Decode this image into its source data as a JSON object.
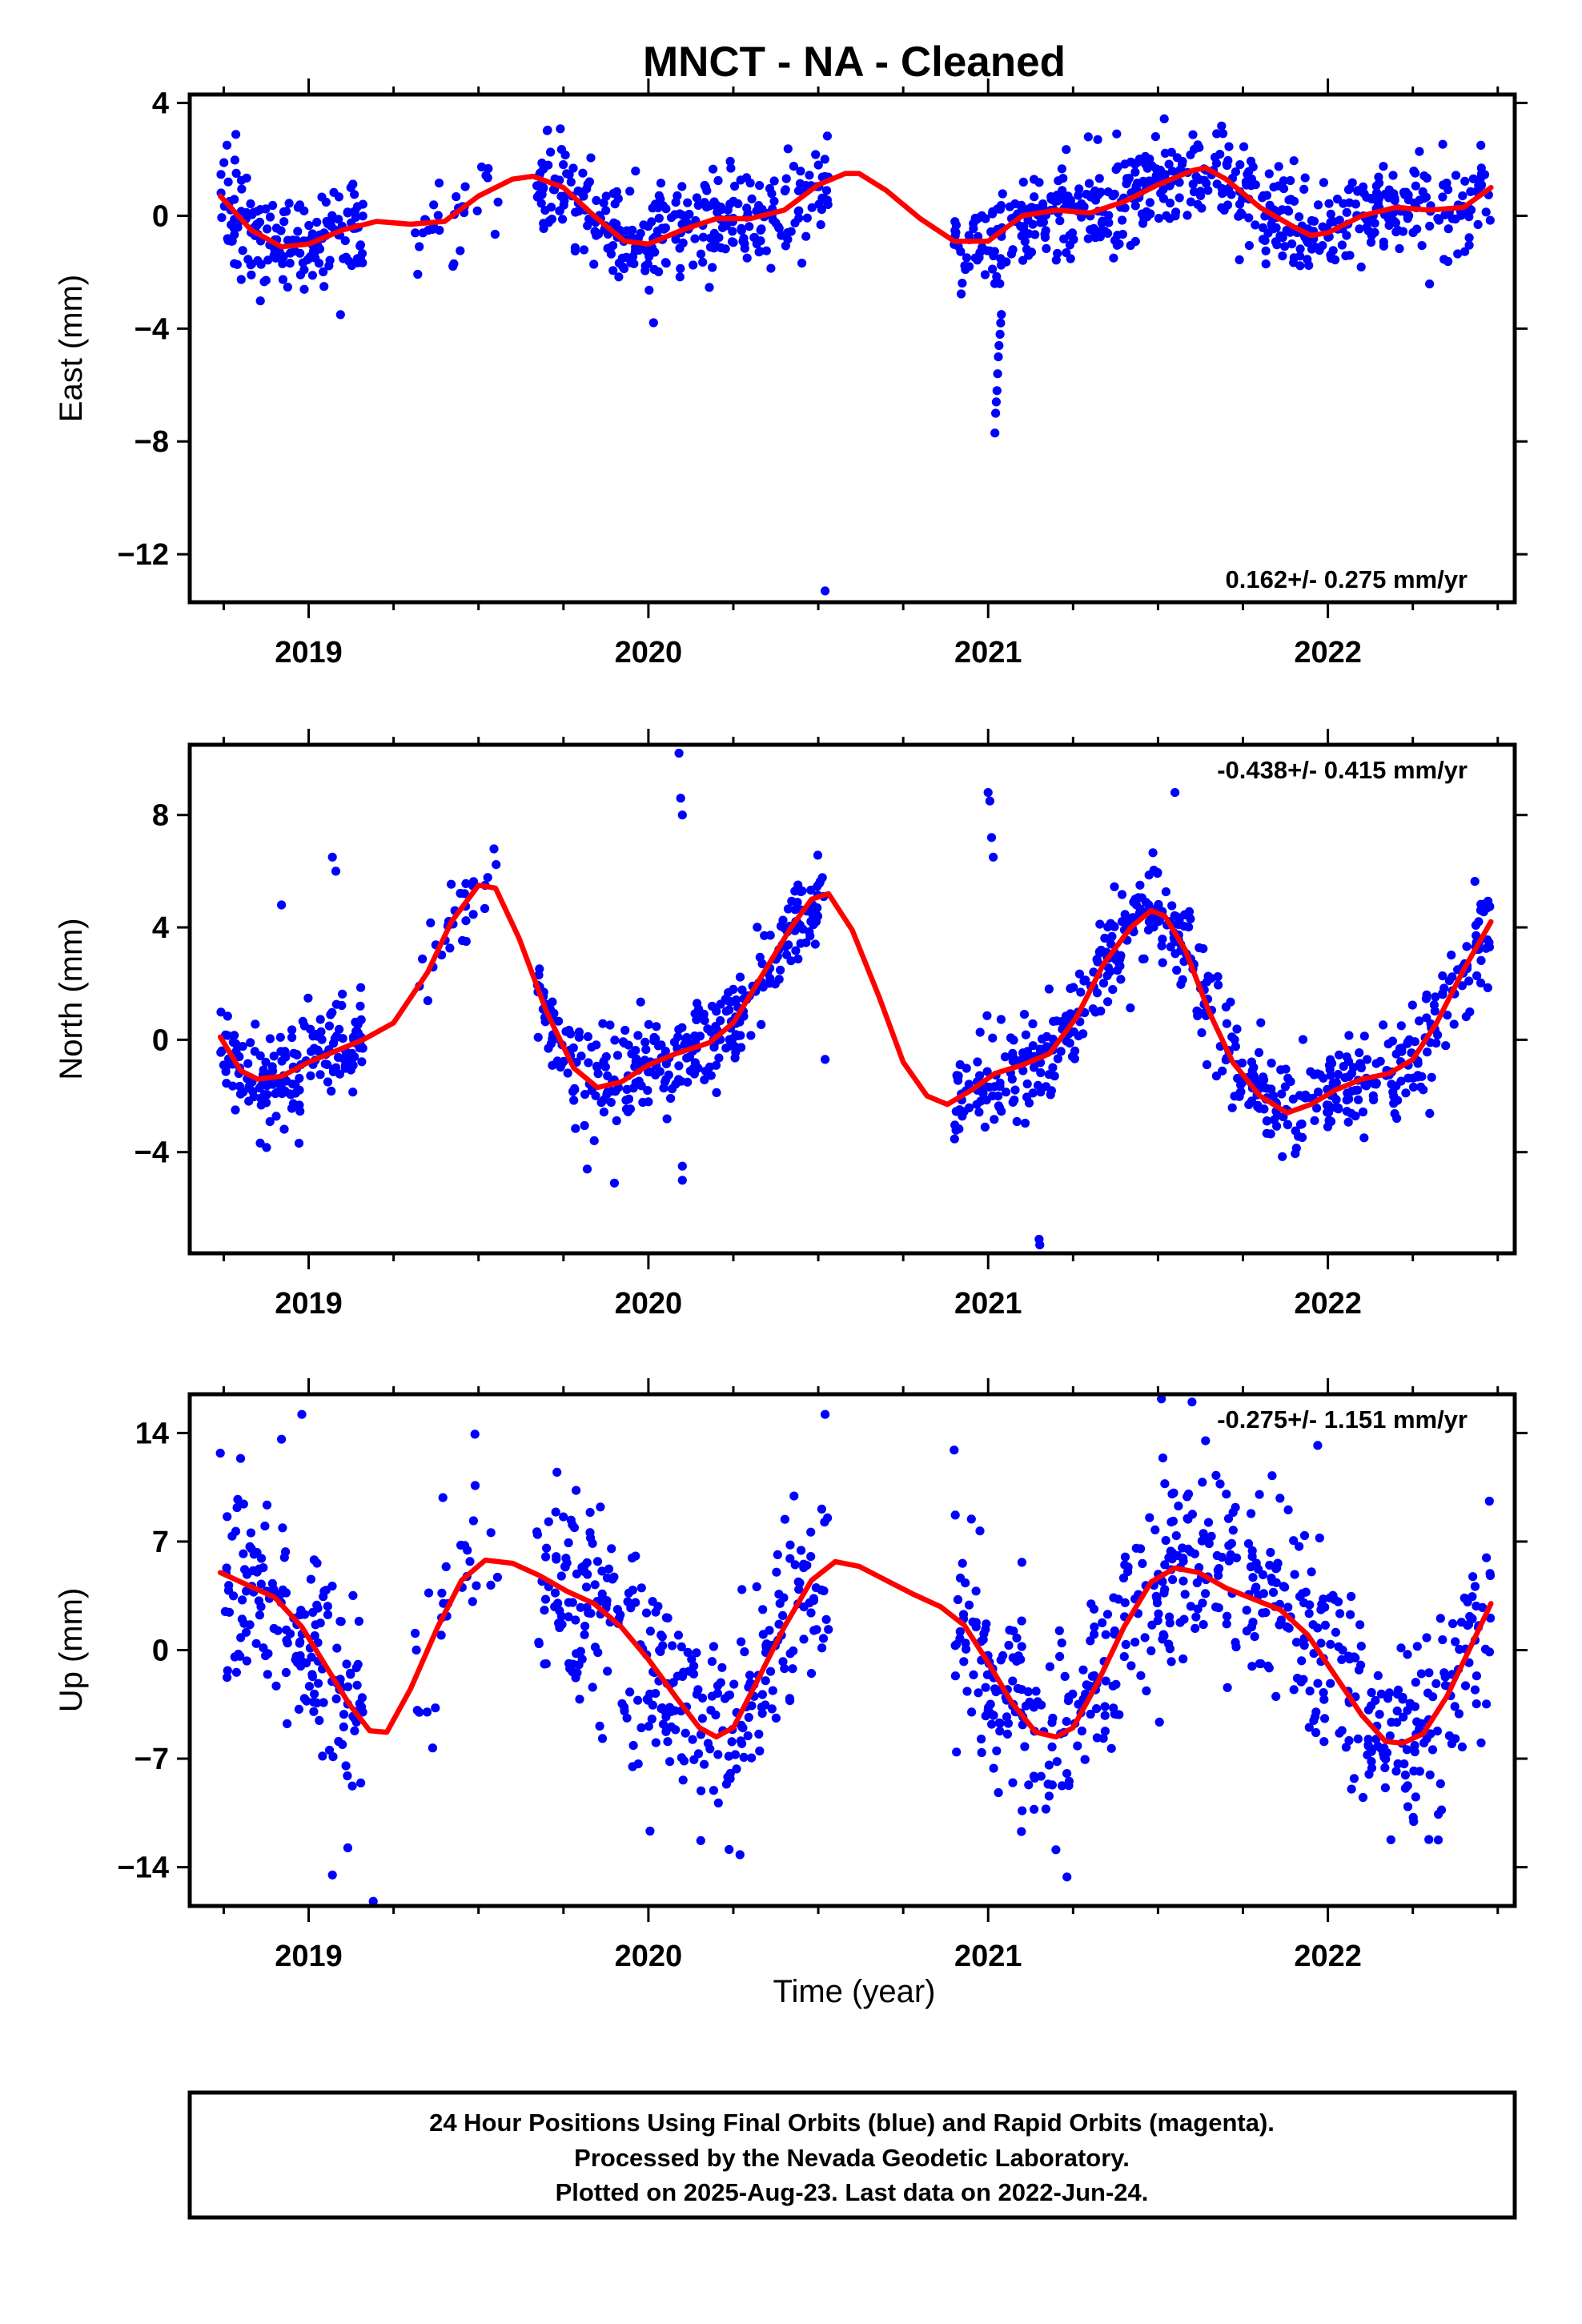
{
  "title": "MNCT  - NA - Cleaned",
  "xlabel": "Time (year)",
  "colors": {
    "points": "#0000ff",
    "model": "#ff0000",
    "frame": "#000000"
  },
  "footer": {
    "line1": "24 Hour Positions Using Final Orbits (blue) and Rapid Orbits (magenta).",
    "line2": "Processed by the Nevada Geodetic Laboratory.",
    "line3": "Plotted on 2025-Aug-23. Last data on 2022-Jun-24."
  },
  "chart_data": [
    {
      "type": "scatter",
      "ylabel": "East (mm)",
      "rate_label": "0.162+/- 0.275 mm/yr",
      "rate_position": "bottom-right",
      "xlim": [
        2018.65,
        2022.55
      ],
      "ylim": [
        -13.7,
        4.3
      ],
      "yticks": [
        4,
        0,
        -4,
        -8,
        -12
      ],
      "ytick_labels": [
        "4",
        "0",
        "−4",
        "−8",
        "−12"
      ],
      "xticks": [
        2019,
        2020,
        2021,
        2022
      ],
      "xtick_labels": [
        "2019",
        "2020",
        "2021",
        "2022"
      ],
      "series": [
        {
          "role": "observations",
          "segments": [
            {
              "start": 2018.74,
              "end": 2019.16,
              "n": 170
            },
            {
              "start": 2019.31,
              "end": 2019.56,
              "n": 30
            },
            {
              "start": 2019.67,
              "end": 2020.53,
              "n": 310
            },
            {
              "start": 2020.9,
              "end": 2022.48,
              "n": 560
            }
          ],
          "noise": 0.85,
          "outliers": [
            {
              "x": 2021.02,
              "y": -7.7
            },
            {
              "x": 2021.022,
              "y": -7.0
            },
            {
              "x": 2021.024,
              "y": -6.6
            },
            {
              "x": 2021.026,
              "y": -6.2
            },
            {
              "x": 2021.028,
              "y": -5.6
            },
            {
              "x": 2021.03,
              "y": -5.0
            },
            {
              "x": 2021.032,
              "y": -4.6
            },
            {
              "x": 2021.035,
              "y": -4.2
            },
            {
              "x": 2021.037,
              "y": -3.8
            },
            {
              "x": 2021.039,
              "y": -3.5
            },
            {
              "x": 2020.52,
              "y": -13.3
            }
          ]
        },
        {
          "role": "model",
          "x": [
            2018.74,
            2018.83,
            2018.92,
            2019.0,
            2019.1,
            2019.2,
            2019.3,
            2019.4,
            2019.5,
            2019.6,
            2019.66,
            2019.75,
            2019.84,
            2019.93,
            2020.0,
            2020.1,
            2020.2,
            2020.3,
            2020.4,
            2020.5,
            2020.58,
            2020.62,
            2020.7,
            2020.8,
            2020.9,
            2021.0,
            2021.1,
            2021.2,
            2021.3,
            2021.4,
            2021.5,
            2021.6,
            2021.64,
            2021.7,
            2021.8,
            2021.9,
            2021.95,
            2022.0,
            2022.1,
            2022.2,
            2022.3,
            2022.4,
            2022.48
          ],
          "y": [
            0.7,
            -0.5,
            -1.1,
            -1.0,
            -0.5,
            -0.2,
            -0.3,
            -0.2,
            0.7,
            1.3,
            1.4,
            1.0,
            0.0,
            -0.9,
            -1.0,
            -0.5,
            -0.1,
            -0.1,
            0.2,
            1.1,
            1.5,
            1.5,
            0.9,
            -0.1,
            -0.9,
            -0.9,
            0.0,
            0.2,
            0.1,
            0.5,
            1.1,
            1.6,
            1.7,
            1.3,
            0.3,
            -0.4,
            -0.7,
            -0.6,
            0.0,
            0.3,
            0.2,
            0.3,
            1.0
          ]
        }
      ]
    },
    {
      "type": "scatter",
      "ylabel": "North (mm)",
      "rate_label": "-0.438+/- 0.415 mm/yr",
      "rate_position": "top-right",
      "xlim": [
        2018.65,
        2022.55
      ],
      "ylim": [
        -7.6,
        10.5
      ],
      "yticks": [
        8,
        4,
        0,
        -4
      ],
      "ytick_labels": [
        "8",
        "4",
        "0",
        "−4"
      ],
      "xticks": [
        2019,
        2020,
        2021,
        2022
      ],
      "xtick_labels": [
        "2019",
        "2020",
        "2021",
        "2022"
      ],
      "series": [
        {
          "role": "observations",
          "segments": [
            {
              "start": 2018.74,
              "end": 2019.16,
              "n": 170
            },
            {
              "start": 2019.31,
              "end": 2019.56,
              "n": 30
            },
            {
              "start": 2019.67,
              "end": 2020.53,
              "n": 310
            },
            {
              "start": 2020.9,
              "end": 2022.48,
              "n": 560
            }
          ],
          "noise": 0.9,
          "outliers": [
            {
              "x": 2020.09,
              "y": 10.2
            },
            {
              "x": 2020.095,
              "y": 8.6
            },
            {
              "x": 2020.1,
              "y": 8.0
            },
            {
              "x": 2021.0,
              "y": 8.8
            },
            {
              "x": 2021.005,
              "y": 8.5
            },
            {
              "x": 2021.01,
              "y": 7.2
            },
            {
              "x": 2021.015,
              "y": 6.5
            },
            {
              "x": 2021.15,
              "y": -7.1
            },
            {
              "x": 2021.152,
              "y": -7.3
            },
            {
              "x": 2021.55,
              "y": 8.8
            },
            {
              "x": 2019.82,
              "y": -4.6
            },
            {
              "x": 2019.9,
              "y": -5.1
            },
            {
              "x": 2020.1,
              "y": -5.0
            },
            {
              "x": 2020.1,
              "y": -4.5
            },
            {
              "x": 2019.07,
              "y": 6.5
            },
            {
              "x": 2019.08,
              "y": 6.0
            },
            {
              "x": 2018.92,
              "y": 4.8
            },
            {
              "x": 2020.52,
              "y": -0.7
            }
          ]
        },
        {
          "role": "model",
          "x": [
            2018.74,
            2018.8,
            2018.85,
            2018.92,
            2019.0,
            2019.08,
            2019.16,
            2019.25,
            2019.35,
            2019.42,
            2019.5,
            2019.55,
            2019.62,
            2019.7,
            2019.78,
            2019.85,
            2019.92,
            2020.0,
            2020.08,
            2020.18,
            2020.25,
            2020.32,
            2020.42,
            2020.48,
            2020.53,
            2020.6,
            2020.68,
            2020.75,
            2020.82,
            2020.88,
            2020.95,
            2021.02,
            2021.1,
            2021.18,
            2021.26,
            2021.34,
            2021.42,
            2021.48,
            2021.52,
            2021.58,
            2021.65,
            2021.72,
            2021.8,
            2021.88,
            2021.95,
            2022.02,
            2022.1,
            2022.18,
            2022.25,
            2022.32,
            2022.4,
            2022.48
          ],
          "y": [
            0.1,
            -1.1,
            -1.4,
            -1.3,
            -0.8,
            -0.4,
            0.0,
            0.6,
            2.4,
            4.2,
            5.5,
            5.4,
            3.6,
            1.0,
            -1.0,
            -1.7,
            -1.5,
            -0.9,
            -0.5,
            -0.1,
            0.6,
            2.0,
            4.0,
            5.0,
            5.2,
            3.9,
            1.5,
            -0.8,
            -2.0,
            -2.3,
            -1.8,
            -1.2,
            -0.9,
            -0.5,
            0.8,
            2.7,
            4.0,
            4.6,
            4.4,
            3.2,
            1.0,
            -0.8,
            -2.0,
            -2.6,
            -2.3,
            -1.8,
            -1.4,
            -1.2,
            -0.7,
            0.6,
            2.5,
            4.2
          ]
        }
      ]
    },
    {
      "type": "scatter",
      "ylabel": "Up (mm)",
      "rate_label": "-0.275+/- 1.151 mm/yr",
      "rate_position": "top-right",
      "xlim": [
        2018.65,
        2022.55
      ],
      "ylim": [
        -16.5,
        16.5
      ],
      "yticks": [
        14,
        7,
        0,
        -7,
        -14
      ],
      "ytick_labels": [
        "14",
        "7",
        "0",
        "−7",
        "−14"
      ],
      "xticks": [
        2019,
        2020,
        2021,
        2022
      ],
      "xtick_labels": [
        "2019",
        "2020",
        "2021",
        "2022"
      ],
      "series": [
        {
          "role": "observations",
          "segments": [
            {
              "start": 2018.74,
              "end": 2019.16,
              "n": 170
            },
            {
              "start": 2019.31,
              "end": 2019.56,
              "n": 30
            },
            {
              "start": 2019.67,
              "end": 2020.53,
              "n": 310
            },
            {
              "start": 2020.9,
              "end": 2022.48,
              "n": 560
            }
          ],
          "noise": 3.3,
          "outliers": [
            {
              "x": 2018.74,
              "y": 12.7
            },
            {
              "x": 2018.98,
              "y": 15.2
            },
            {
              "x": 2018.92,
              "y": 13.6
            },
            {
              "x": 2019.19,
              "y": -16.2
            },
            {
              "x": 2019.07,
              "y": -14.5
            },
            {
              "x": 2020.52,
              "y": 15.2
            },
            {
              "x": 2021.51,
              "y": 16.2
            },
            {
              "x": 2021.6,
              "y": 16.0
            },
            {
              "x": 2021.64,
              "y": 13.5
            },
            {
              "x": 2020.9,
              "y": 12.9
            },
            {
              "x": 2021.97,
              "y": 13.2
            }
          ]
        },
        {
          "role": "model",
          "x": [
            2018.74,
            2018.82,
            2018.9,
            2018.98,
            2019.05,
            2019.12,
            2019.18,
            2019.23,
            2019.3,
            2019.38,
            2019.45,
            2019.52,
            2019.6,
            2019.68,
            2019.76,
            2019.84,
            2019.92,
            2020.0,
            2020.08,
            2020.15,
            2020.2,
            2020.25,
            2020.32,
            2020.4,
            2020.48,
            2020.55,
            2020.62,
            2020.7,
            2020.78,
            2020.86,
            2020.93,
            2021.0,
            2021.07,
            2021.14,
            2021.2,
            2021.25,
            2021.32,
            2021.4,
            2021.48,
            2021.55,
            2021.62,
            2021.7,
            2021.78,
            2021.86,
            2021.94,
            2022.02,
            2022.1,
            2022.17,
            2022.22,
            2022.28,
            2022.35,
            2022.42,
            2022.48
          ],
          "y": [
            5.0,
            4.2,
            3.4,
            1.5,
            -1.0,
            -3.5,
            -5.2,
            -5.3,
            -2.5,
            1.5,
            4.5,
            5.8,
            5.6,
            4.8,
            3.8,
            3.0,
            1.5,
            -0.6,
            -3.0,
            -5.0,
            -5.6,
            -5.0,
            -2.0,
            1.5,
            4.5,
            5.7,
            5.4,
            4.5,
            3.6,
            2.8,
            1.6,
            -0.8,
            -3.4,
            -5.3,
            -5.6,
            -5.0,
            -2.2,
            1.5,
            4.4,
            5.3,
            5.0,
            4.0,
            3.3,
            2.6,
            1.0,
            -1.6,
            -4.2,
            -5.9,
            -6.0,
            -5.4,
            -3.0,
            0.2,
            3.0
          ]
        }
      ]
    }
  ]
}
